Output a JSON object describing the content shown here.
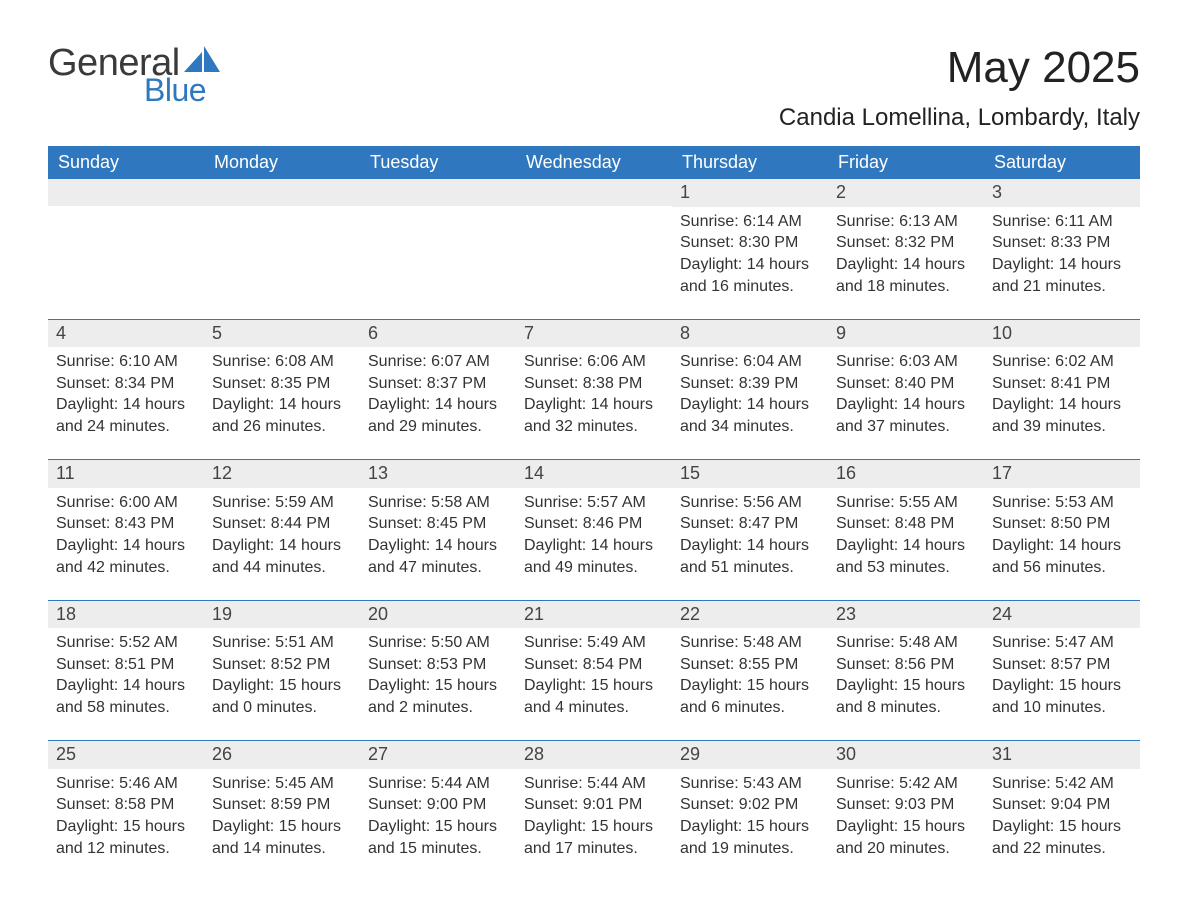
{
  "brand": {
    "word1": "General",
    "word2": "Blue",
    "brand_color": "#2f78bf",
    "text_color": "#3a3a3a"
  },
  "header": {
    "title": "May 2025",
    "location": "Candia Lomellina, Lombardy, Italy"
  },
  "colors": {
    "header_bg": "#2f78bf",
    "header_fg": "#ffffff",
    "daynum_bg": "#ededed",
    "rule": "#2f78bf",
    "page_bg": "#ffffff",
    "body_text": "#333333"
  },
  "day_labels": [
    "Sunday",
    "Monday",
    "Tuesday",
    "Wednesday",
    "Thursday",
    "Friday",
    "Saturday"
  ],
  "weeks": [
    [
      {
        "empty": true
      },
      {
        "empty": true
      },
      {
        "empty": true
      },
      {
        "empty": true
      },
      {
        "n": "1",
        "sunrise": "Sunrise: 6:14 AM",
        "sunset": "Sunset: 8:30 PM",
        "day1": "Daylight: 14 hours",
        "day2": "and 16 minutes."
      },
      {
        "n": "2",
        "sunrise": "Sunrise: 6:13 AM",
        "sunset": "Sunset: 8:32 PM",
        "day1": "Daylight: 14 hours",
        "day2": "and 18 minutes."
      },
      {
        "n": "3",
        "sunrise": "Sunrise: 6:11 AM",
        "sunset": "Sunset: 8:33 PM",
        "day1": "Daylight: 14 hours",
        "day2": "and 21 minutes."
      }
    ],
    [
      {
        "n": "4",
        "sunrise": "Sunrise: 6:10 AM",
        "sunset": "Sunset: 8:34 PM",
        "day1": "Daylight: 14 hours",
        "day2": "and 24 minutes."
      },
      {
        "n": "5",
        "sunrise": "Sunrise: 6:08 AM",
        "sunset": "Sunset: 8:35 PM",
        "day1": "Daylight: 14 hours",
        "day2": "and 26 minutes."
      },
      {
        "n": "6",
        "sunrise": "Sunrise: 6:07 AM",
        "sunset": "Sunset: 8:37 PM",
        "day1": "Daylight: 14 hours",
        "day2": "and 29 minutes."
      },
      {
        "n": "7",
        "sunrise": "Sunrise: 6:06 AM",
        "sunset": "Sunset: 8:38 PM",
        "day1": "Daylight: 14 hours",
        "day2": "and 32 minutes."
      },
      {
        "n": "8",
        "sunrise": "Sunrise: 6:04 AM",
        "sunset": "Sunset: 8:39 PM",
        "day1": "Daylight: 14 hours",
        "day2": "and 34 minutes."
      },
      {
        "n": "9",
        "sunrise": "Sunrise: 6:03 AM",
        "sunset": "Sunset: 8:40 PM",
        "day1": "Daylight: 14 hours",
        "day2": "and 37 minutes."
      },
      {
        "n": "10",
        "sunrise": "Sunrise: 6:02 AM",
        "sunset": "Sunset: 8:41 PM",
        "day1": "Daylight: 14 hours",
        "day2": "and 39 minutes."
      }
    ],
    [
      {
        "n": "11",
        "sunrise": "Sunrise: 6:00 AM",
        "sunset": "Sunset: 8:43 PM",
        "day1": "Daylight: 14 hours",
        "day2": "and 42 minutes."
      },
      {
        "n": "12",
        "sunrise": "Sunrise: 5:59 AM",
        "sunset": "Sunset: 8:44 PM",
        "day1": "Daylight: 14 hours",
        "day2": "and 44 minutes."
      },
      {
        "n": "13",
        "sunrise": "Sunrise: 5:58 AM",
        "sunset": "Sunset: 8:45 PM",
        "day1": "Daylight: 14 hours",
        "day2": "and 47 minutes."
      },
      {
        "n": "14",
        "sunrise": "Sunrise: 5:57 AM",
        "sunset": "Sunset: 8:46 PM",
        "day1": "Daylight: 14 hours",
        "day2": "and 49 minutes."
      },
      {
        "n": "15",
        "sunrise": "Sunrise: 5:56 AM",
        "sunset": "Sunset: 8:47 PM",
        "day1": "Daylight: 14 hours",
        "day2": "and 51 minutes."
      },
      {
        "n": "16",
        "sunrise": "Sunrise: 5:55 AM",
        "sunset": "Sunset: 8:48 PM",
        "day1": "Daylight: 14 hours",
        "day2": "and 53 minutes."
      },
      {
        "n": "17",
        "sunrise": "Sunrise: 5:53 AM",
        "sunset": "Sunset: 8:50 PM",
        "day1": "Daylight: 14 hours",
        "day2": "and 56 minutes."
      }
    ],
    [
      {
        "n": "18",
        "sunrise": "Sunrise: 5:52 AM",
        "sunset": "Sunset: 8:51 PM",
        "day1": "Daylight: 14 hours",
        "day2": "and 58 minutes."
      },
      {
        "n": "19",
        "sunrise": "Sunrise: 5:51 AM",
        "sunset": "Sunset: 8:52 PM",
        "day1": "Daylight: 15 hours",
        "day2": "and 0 minutes."
      },
      {
        "n": "20",
        "sunrise": "Sunrise: 5:50 AM",
        "sunset": "Sunset: 8:53 PM",
        "day1": "Daylight: 15 hours",
        "day2": "and 2 minutes."
      },
      {
        "n": "21",
        "sunrise": "Sunrise: 5:49 AM",
        "sunset": "Sunset: 8:54 PM",
        "day1": "Daylight: 15 hours",
        "day2": "and 4 minutes."
      },
      {
        "n": "22",
        "sunrise": "Sunrise: 5:48 AM",
        "sunset": "Sunset: 8:55 PM",
        "day1": "Daylight: 15 hours",
        "day2": "and 6 minutes."
      },
      {
        "n": "23",
        "sunrise": "Sunrise: 5:48 AM",
        "sunset": "Sunset: 8:56 PM",
        "day1": "Daylight: 15 hours",
        "day2": "and 8 minutes."
      },
      {
        "n": "24",
        "sunrise": "Sunrise: 5:47 AM",
        "sunset": "Sunset: 8:57 PM",
        "day1": "Daylight: 15 hours",
        "day2": "and 10 minutes."
      }
    ],
    [
      {
        "n": "25",
        "sunrise": "Sunrise: 5:46 AM",
        "sunset": "Sunset: 8:58 PM",
        "day1": "Daylight: 15 hours",
        "day2": "and 12 minutes."
      },
      {
        "n": "26",
        "sunrise": "Sunrise: 5:45 AM",
        "sunset": "Sunset: 8:59 PM",
        "day1": "Daylight: 15 hours",
        "day2": "and 14 minutes."
      },
      {
        "n": "27",
        "sunrise": "Sunrise: 5:44 AM",
        "sunset": "Sunset: 9:00 PM",
        "day1": "Daylight: 15 hours",
        "day2": "and 15 minutes."
      },
      {
        "n": "28",
        "sunrise": "Sunrise: 5:44 AM",
        "sunset": "Sunset: 9:01 PM",
        "day1": "Daylight: 15 hours",
        "day2": "and 17 minutes."
      },
      {
        "n": "29",
        "sunrise": "Sunrise: 5:43 AM",
        "sunset": "Sunset: 9:02 PM",
        "day1": "Daylight: 15 hours",
        "day2": "and 19 minutes."
      },
      {
        "n": "30",
        "sunrise": "Sunrise: 5:42 AM",
        "sunset": "Sunset: 9:03 PM",
        "day1": "Daylight: 15 hours",
        "day2": "and 20 minutes."
      },
      {
        "n": "31",
        "sunrise": "Sunrise: 5:42 AM",
        "sunset": "Sunset: 9:04 PM",
        "day1": "Daylight: 15 hours",
        "day2": "and 22 minutes."
      }
    ]
  ]
}
